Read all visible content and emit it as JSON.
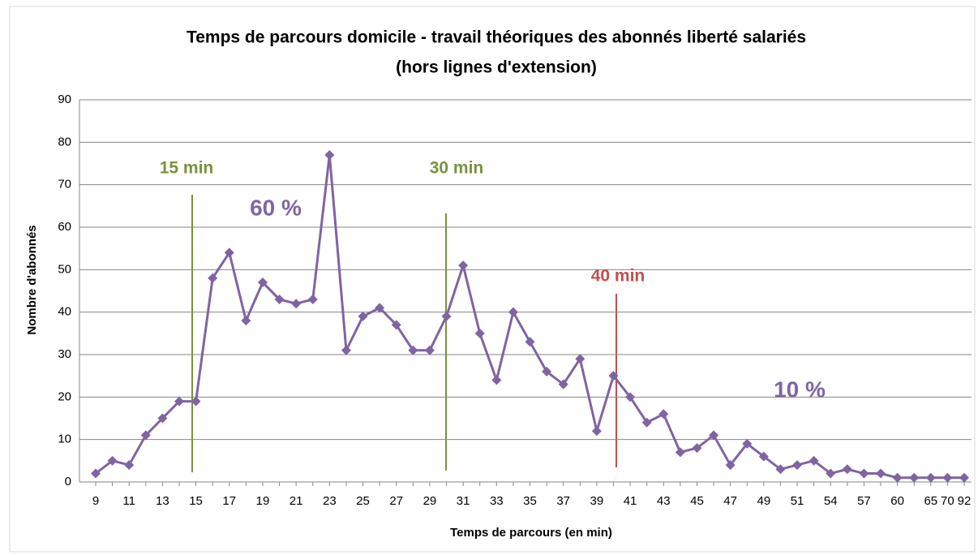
{
  "chart_data": {
    "type": "line",
    "title": "Temps de parcours domicile - travail  théoriques des abonnés liberté salariés",
    "subtitle": "(hors lignes d'extension)",
    "x_label": "Temps de parcours (en min)",
    "y_label": "Nombre d'abonnés",
    "categories": [
      "9",
      null,
      "11",
      null,
      "13",
      null,
      "15",
      null,
      "17",
      null,
      "19",
      null,
      "21",
      null,
      "23",
      null,
      "25",
      null,
      "27",
      null,
      "29",
      null,
      "31",
      null,
      "33",
      null,
      "35",
      null,
      "37",
      null,
      "39",
      null,
      "41",
      null,
      "43",
      null,
      "45",
      null,
      "47",
      null,
      "49",
      null,
      "51",
      null,
      "54",
      null,
      "57",
      null,
      "60",
      null,
      "65",
      "70",
      "92"
    ],
    "series": [
      {
        "name": "Nombre d'abonnés",
        "color": "#8064a2",
        "values": [
          2,
          5,
          4,
          11,
          15,
          19,
          19,
          48,
          54,
          38,
          47,
          43,
          42,
          43,
          77,
          31,
          39,
          41,
          37,
          31,
          31,
          39,
          51,
          35,
          24,
          40,
          33,
          26,
          23,
          29,
          12,
          25,
          20,
          14,
          16,
          7,
          8,
          11,
          4,
          9,
          6,
          3,
          4,
          5,
          2,
          3,
          2,
          2,
          1,
          1,
          1,
          1,
          1
        ]
      }
    ],
    "annotations": [
      {
        "text": "15 min",
        "color": "#77933c"
      },
      {
        "text": "30 min",
        "color": "#77933c"
      },
      {
        "text": "40 min",
        "color": "#c0504d"
      },
      {
        "text": "60 %",
        "color": "#8064a2"
      },
      {
        "text": "10 %",
        "color": "#8064a2"
      }
    ],
    "ylim": [
      0,
      90
    ],
    "yticks": [
      0,
      10,
      20,
      30,
      40,
      50,
      60,
      70,
      80,
      90
    ],
    "grid": true
  }
}
